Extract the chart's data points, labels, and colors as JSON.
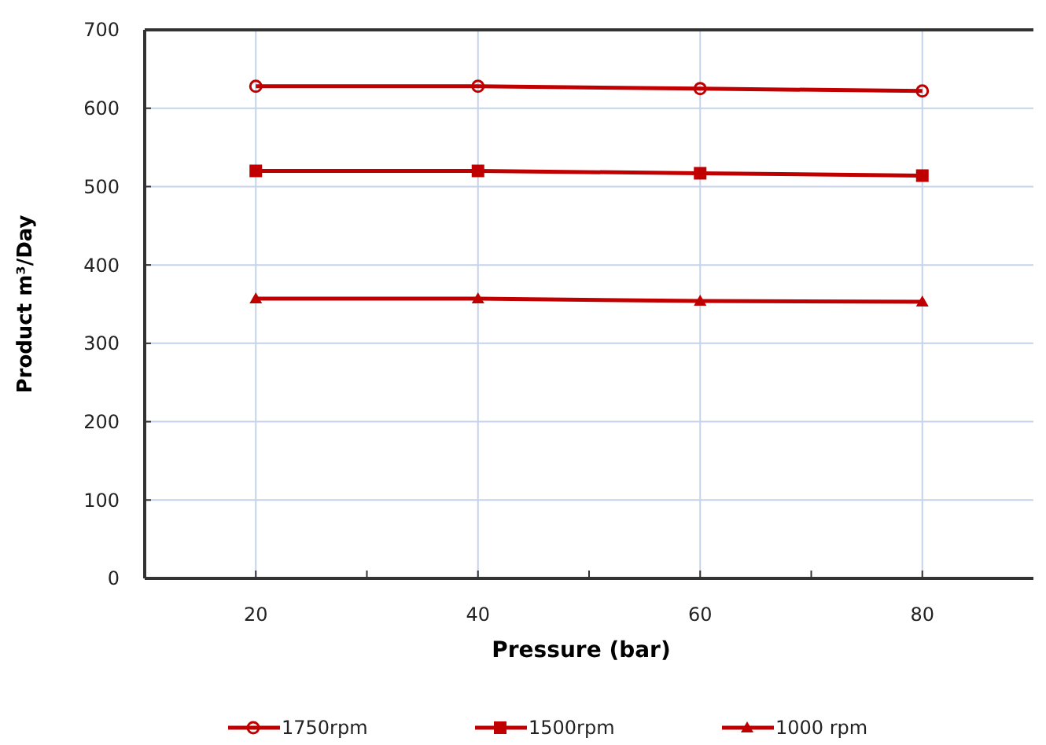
{
  "chart_data": {
    "type": "line",
    "xlabel": "Pressure (bar)",
    "ylabel": "Product m³/Day",
    "x": [
      20,
      40,
      60,
      80
    ],
    "xlim": [
      10,
      90
    ],
    "xticks": [
      20,
      {
        "value": 30,
        "label": null
      },
      40,
      {
        "value": 50,
        "label": null
      },
      60,
      {
        "value": 70,
        "label": null
      },
      80
    ],
    "ylim": [
      0,
      700
    ],
    "yticks": [
      0,
      100,
      200,
      300,
      400,
      500,
      600,
      700
    ],
    "grid": true,
    "legend": "bottom",
    "line_style": "solid",
    "series": [
      {
        "name": "1750rpm",
        "color": "#c00000",
        "marker": "circle",
        "values": [
          628,
          628,
          625,
          622
        ]
      },
      {
        "name": "1500rpm",
        "color": "#c00000",
        "marker": "square",
        "values": [
          520,
          520,
          517,
          514
        ]
      },
      {
        "name": "1000 rpm",
        "color": "#c00000",
        "marker": "triangle",
        "values": [
          357,
          357,
          354,
          353
        ]
      }
    ]
  }
}
